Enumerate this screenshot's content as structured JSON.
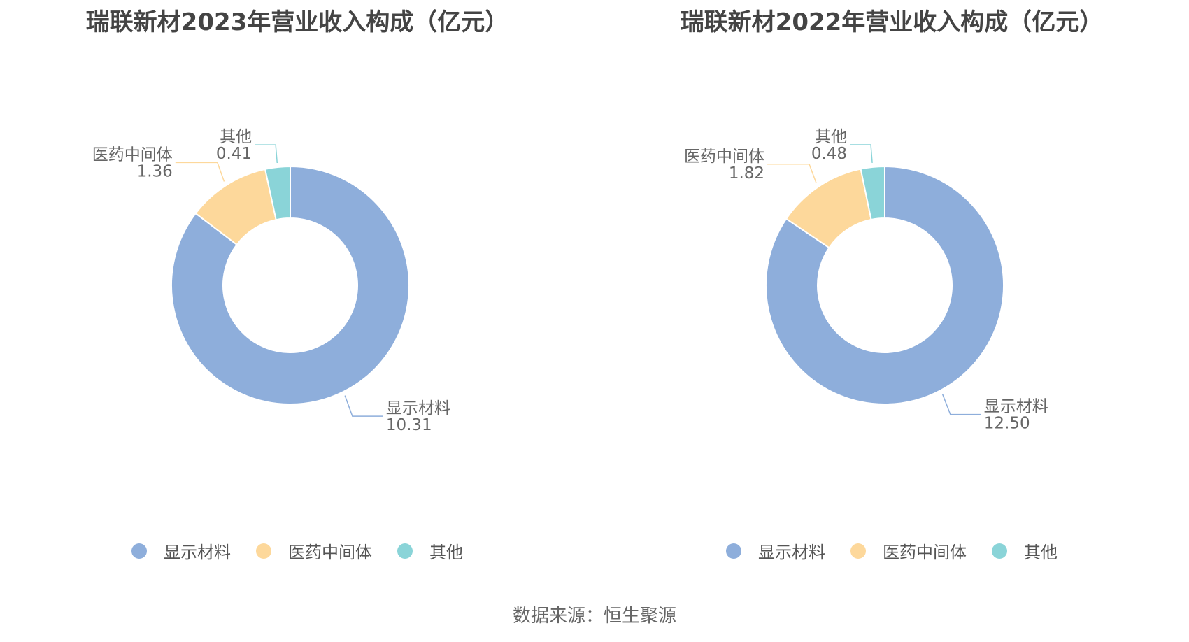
{
  "source": "数据来源：恒生聚源",
  "chart_data": [
    {
      "type": "pie",
      "title": "瑞联新材2023年营业收入构成（亿元）",
      "categories": [
        "显示材料",
        "医药中间体",
        "其他"
      ],
      "values": [
        10.31,
        1.36,
        0.41
      ],
      "value_labels": [
        "10.31",
        "1.36",
        "0.41"
      ],
      "colors": [
        "#8eaedb",
        "#fdd89b",
        "#8ad4d8"
      ],
      "legend": "bottom"
    },
    {
      "type": "pie",
      "title": "瑞联新材2022年营业收入构成（亿元）",
      "categories": [
        "显示材料",
        "医药中间体",
        "其他"
      ],
      "values": [
        12.5,
        1.82,
        0.48
      ],
      "value_labels": [
        "12.50",
        "1.82",
        "0.48"
      ],
      "colors": [
        "#8eaedb",
        "#fdd89b",
        "#8ad4d8"
      ],
      "legend": "bottom"
    }
  ]
}
